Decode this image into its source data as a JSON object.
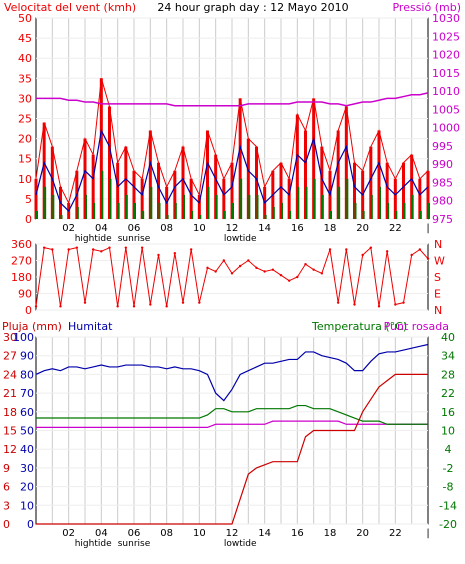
{
  "colors": {
    "wind": "#ee0000",
    "wind_blue": "#0000aa",
    "wind_green": "#007700",
    "pressure": "#cc00cc",
    "humidity": "#0000aa",
    "temperature": "#007700",
    "dewpoint": "#cc00cc",
    "rain": "#cc0000",
    "grid": "#cccccc",
    "frame": "#000000"
  },
  "chart_data": [
    {
      "type": "line",
      "title": "24 hour graph day : 12 Mayo 2010",
      "ylabel_left": "Velocitat del vent (kmh)",
      "ylabel_right": "Pressió (mb)",
      "x_ticks": [
        "02",
        "04",
        "06",
        "08",
        "10",
        "12",
        "14",
        "16",
        "18",
        "20",
        "22"
      ],
      "ylim_left": [
        0,
        50
      ],
      "y_ticks_left": [
        "50",
        "45",
        "40",
        "35",
        "30",
        "25",
        "20",
        "15",
        "10",
        "5",
        "0"
      ],
      "ylim_right": [
        975,
        1030
      ],
      "y_ticks_right": [
        "1030",
        "1025",
        "1020",
        "1015",
        "1010",
        "1005",
        "1000",
        "995",
        "990",
        "985",
        "980",
        "975"
      ],
      "annotations_below": [
        "hightide",
        "sunrise",
        "lowtide"
      ],
      "x_hours": [
        0,
        0.5,
        1,
        1.5,
        2,
        2.5,
        3,
        3.5,
        4,
        4.5,
        5,
        5.5,
        6,
        6.5,
        7,
        7.5,
        8,
        8.5,
        9,
        9.5,
        10,
        10.5,
        11,
        11.5,
        12,
        12.5,
        13,
        13.5,
        14,
        14.5,
        15,
        15.5,
        16,
        16.5,
        17,
        17.5,
        18,
        18.5,
        19,
        19.5,
        20,
        20.5,
        21,
        21.5,
        22,
        22.5,
        23,
        23.5,
        24
      ],
      "series": [
        {
          "name": "gust",
          "values": [
            10,
            24,
            18,
            8,
            4,
            12,
            20,
            16,
            35,
            28,
            14,
            18,
            12,
            10,
            22,
            14,
            8,
            12,
            18,
            10,
            6,
            22,
            16,
            10,
            14,
            30,
            20,
            18,
            8,
            12,
            14,
            10,
            26,
            22,
            30,
            18,
            12,
            22,
            28,
            14,
            12,
            18,
            22,
            14,
            10,
            14,
            16,
            10,
            12
          ]
        },
        {
          "name": "average",
          "values": [
            6,
            14,
            10,
            4,
            2,
            6,
            12,
            10,
            22,
            18,
            8,
            10,
            8,
            6,
            14,
            8,
            4,
            8,
            10,
            6,
            4,
            14,
            10,
            6,
            8,
            18,
            12,
            10,
            4,
            6,
            8,
            6,
            16,
            14,
            20,
            10,
            6,
            14,
            18,
            8,
            6,
            10,
            14,
            8,
            6,
            8,
            10,
            6,
            8
          ]
        },
        {
          "name": "minimum",
          "values": [
            2,
            8,
            6,
            1,
            0,
            3,
            6,
            4,
            12,
            10,
            4,
            6,
            4,
            2,
            8,
            4,
            1,
            4,
            6,
            2,
            1,
            8,
            6,
            2,
            4,
            10,
            6,
            6,
            1,
            3,
            4,
            2,
            8,
            8,
            10,
            6,
            2,
            8,
            10,
            4,
            2,
            6,
            8,
            4,
            2,
            4,
            6,
            2,
            4
          ]
        },
        {
          "name": "pressure",
          "values": [
            1008,
            1008,
            1008,
            1008,
            1007.5,
            1007.5,
            1007,
            1007,
            1006.5,
            1006.5,
            1006.5,
            1006.5,
            1006.5,
            1006.5,
            1006.5,
            1006.5,
            1006.5,
            1006,
            1006,
            1006,
            1006,
            1006,
            1006,
            1006,
            1006,
            1006,
            1006.5,
            1006.5,
            1006.5,
            1006.5,
            1006.5,
            1006.5,
            1007,
            1007,
            1007,
            1007,
            1006.5,
            1006.5,
            1006,
            1006.5,
            1007,
            1007,
            1007.5,
            1008,
            1008,
            1008.5,
            1009,
            1009,
            1009.5
          ]
        }
      ]
    },
    {
      "type": "scatter",
      "title": "",
      "ylabel_right": "Direcció",
      "ylim": [
        0,
        360
      ],
      "y_ticks_left": [
        "360",
        "270",
        "180",
        "90",
        "0"
      ],
      "y_ticks_right": [
        "N",
        "W",
        "S",
        "E",
        "N"
      ],
      "x_hours": [
        0,
        0.5,
        1,
        1.5,
        2,
        2.5,
        3,
        3.5,
        4,
        4.5,
        5,
        5.5,
        6,
        6.5,
        7,
        7.5,
        8,
        8.5,
        9,
        9.5,
        10,
        10.5,
        11,
        11.5,
        12,
        12.5,
        13,
        13.5,
        14,
        14.5,
        15,
        15.5,
        16,
        16.5,
        17,
        17.5,
        18,
        18.5,
        19,
        19.5,
        20,
        20.5,
        21,
        21.5,
        22,
        22.5,
        23,
        23.5,
        24
      ],
      "series": [
        {
          "name": "direction",
          "values": [
            20,
            340,
            330,
            20,
            330,
            340,
            40,
            330,
            320,
            340,
            20,
            340,
            20,
            340,
            30,
            300,
            20,
            310,
            40,
            330,
            40,
            230,
            210,
            270,
            200,
            240,
            270,
            230,
            210,
            220,
            190,
            160,
            180,
            250,
            220,
            200,
            330,
            40,
            330,
            30,
            300,
            340,
            20,
            320,
            30,
            40,
            300,
            330,
            280
          ]
        }
      ]
    },
    {
      "type": "line",
      "title": "",
      "ylabel_left": "Pluja (mm)",
      "ylabel_left2": "Humitat",
      "ylabel_right": "Temperatura (°C)",
      "ylabel_right2": "Punt rosada",
      "ylim_left": [
        0,
        30
      ],
      "y_ticks_left_rain": [
        "30",
        "27",
        "24",
        "21",
        "18",
        "15",
        "12",
        "9",
        "6",
        "3",
        "0"
      ],
      "y_ticks_left_humidity": [
        "100",
        "90",
        "80",
        "70",
        "60",
        "50",
        "40",
        "30",
        "20",
        "10",
        "0"
      ],
      "ylim_right": [
        -20,
        40
      ],
      "y_ticks_right": [
        "40",
        "34",
        "28",
        "22",
        "16",
        "10",
        "4",
        "-2",
        "-8",
        "-14",
        "-20"
      ],
      "x_ticks": [
        "02",
        "04",
        "06",
        "08",
        "10",
        "12",
        "14",
        "16",
        "18",
        "20",
        "22"
      ],
      "annotations_below": [
        "hightide",
        "sunrise",
        "lowtide"
      ],
      "x_hours": [
        0,
        0.5,
        1,
        1.5,
        2,
        2.5,
        3,
        3.5,
        4,
        4.5,
        5,
        5.5,
        6,
        6.5,
        7,
        7.5,
        8,
        8.5,
        9,
        9.5,
        10,
        10.5,
        11,
        11.5,
        12,
        12.5,
        13,
        13.5,
        14,
        14.5,
        15,
        15.5,
        16,
        16.5,
        17,
        17.5,
        18,
        18.5,
        19,
        19.5,
        20,
        20.5,
        21,
        21.5,
        22,
        22.5,
        23,
        23.5,
        24
      ],
      "series": [
        {
          "name": "humidity",
          "values": [
            80,
            82,
            83,
            82,
            84,
            84,
            83,
            84,
            85,
            84,
            84,
            85,
            85,
            85,
            84,
            84,
            83,
            84,
            83,
            83,
            82,
            80,
            70,
            66,
            72,
            80,
            82,
            84,
            86,
            86,
            87,
            88,
            88,
            92,
            92,
            90,
            89,
            88,
            86,
            82,
            82,
            87,
            91,
            92,
            92,
            93,
            94,
            95,
            96
          ]
        },
        {
          "name": "temperature",
          "values": [
            14,
            14,
            14,
            14,
            14,
            14,
            14,
            14,
            14,
            14,
            14,
            14,
            14,
            14,
            14,
            14,
            14,
            14,
            14,
            14,
            14,
            15,
            17,
            17,
            16,
            16,
            16,
            17,
            17,
            17,
            17,
            17,
            18,
            18,
            17,
            17,
            17,
            16,
            15,
            14,
            13,
            13,
            13,
            12,
            12,
            12,
            12,
            12,
            12
          ]
        },
        {
          "name": "dewpoint",
          "values": [
            11,
            11,
            11,
            11,
            11,
            11,
            11,
            11,
            11,
            11,
            11,
            11,
            11,
            11,
            11,
            11,
            11,
            11,
            11,
            11,
            11,
            11,
            12,
            12,
            12,
            12,
            12,
            12,
            12,
            13,
            13,
            13,
            13,
            13,
            13,
            13,
            13,
            13,
            12,
            12,
            12,
            12,
            12,
            12,
            12,
            12,
            12,
            12,
            12
          ]
        },
        {
          "name": "rain",
          "values": [
            0,
            0,
            0,
            0,
            0,
            0,
            0,
            0,
            0,
            0,
            0,
            0,
            0,
            0,
            0,
            0,
            0,
            0,
            0,
            0,
            0,
            0,
            0,
            0,
            0,
            4,
            8,
            9,
            9.5,
            10,
            10,
            10,
            10,
            14,
            15,
            15,
            15,
            15,
            15,
            15,
            18,
            20,
            22,
            23,
            24,
            24,
            24,
            24,
            24
          ]
        }
      ]
    }
  ]
}
